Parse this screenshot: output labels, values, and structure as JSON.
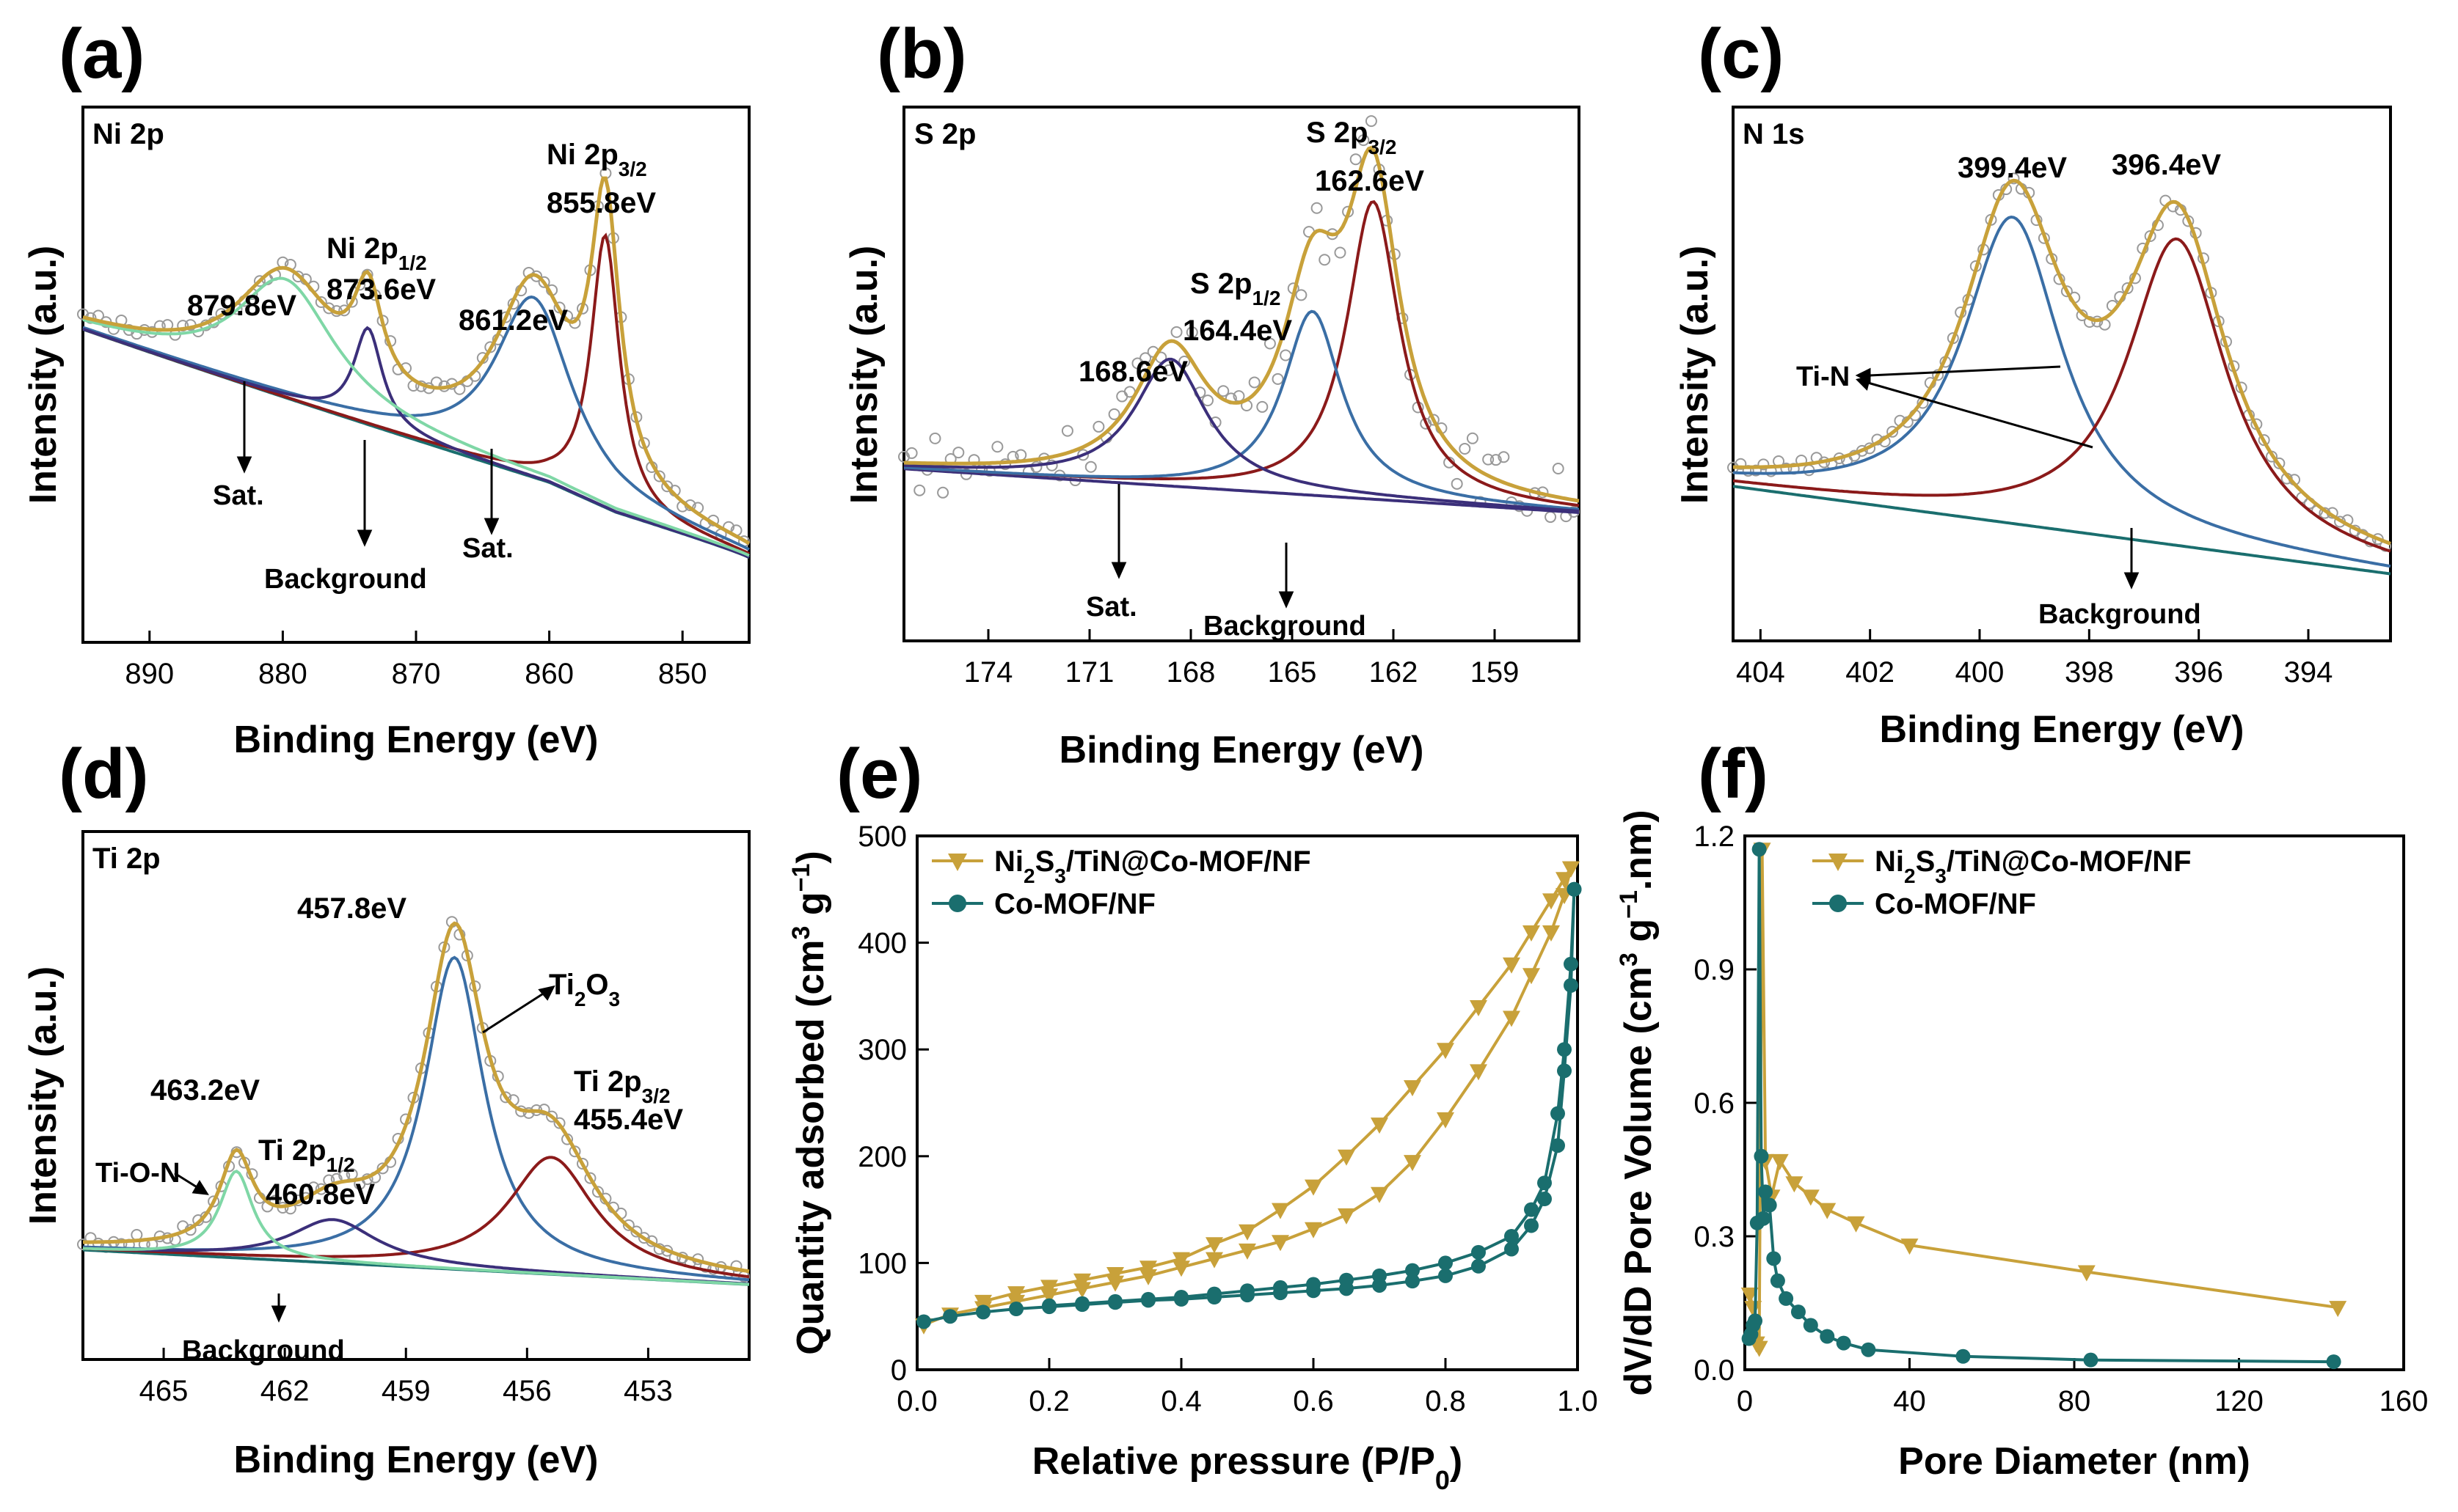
{
  "colors": {
    "gold": "#c8a13a",
    "blue": "#3a6ea5",
    "red": "#8b1a1a",
    "navy": "#3b2f7a",
    "green": "#7fd7a6",
    "teal": "#1a6e6e",
    "point": "#999999"
  },
  "chart_data": [
    {
      "id": "a",
      "type": "line",
      "panel_label": "(a)",
      "corner_label": "Ni 2p",
      "xlabel": "Binding Energy (eV)",
      "ylabel": "Intensity (a.u.)",
      "xlim": [
        895,
        845
      ],
      "xticks": [
        "890",
        "880",
        "870",
        "860",
        "850"
      ],
      "xtick_values": [
        890,
        880,
        870,
        860,
        850
      ],
      "ylim": [
        0,
        1
      ],
      "peaks": [
        {
          "center": 855.8,
          "height": 0.62,
          "width": 1.3,
          "color": "red"
        },
        {
          "center": 861.2,
          "height": 0.41,
          "width": 3.5,
          "color": "blue"
        },
        {
          "center": 873.6,
          "height": 0.22,
          "width": 1.3,
          "color": "navy"
        },
        {
          "center": 879.8,
          "height": 0.27,
          "width": 4.5,
          "color": "green"
        }
      ],
      "background": "ni",
      "annotations": [
        {
          "label": "879.8eV"
        },
        {
          "label": "Ni 2p",
          "sub": "1/2"
        },
        {
          "label": "873.6eV"
        },
        {
          "label": "861.2eV"
        },
        {
          "label": "Ni 2p",
          "sub": "3/2"
        },
        {
          "label": "855.8eV"
        },
        {
          "label": "Sat."
        },
        {
          "label": "Sat."
        },
        {
          "label": "Background"
        }
      ]
    },
    {
      "id": "b",
      "type": "line",
      "panel_label": "(b)",
      "corner_label": "S 2p",
      "xlabel": "Binding Energy (eV)",
      "ylabel": "Intensity (a.u.)",
      "xlim": [
        176.5,
        156.5
      ],
      "xticks": [
        "174",
        "171",
        "168",
        "165",
        "162",
        "159"
      ],
      "xtick_values": [
        174,
        171,
        168,
        165,
        162,
        159
      ],
      "ylim": [
        0,
        1
      ],
      "peaks": [
        {
          "center": 162.6,
          "height": 0.68,
          "width": 0.95,
          "color": "red"
        },
        {
          "center": 164.4,
          "height": 0.42,
          "width": 1.05,
          "color": "blue"
        },
        {
          "center": 168.6,
          "height": 0.29,
          "width": 1.3,
          "color": "navy"
        }
      ],
      "background": "s",
      "annotations": [
        {
          "label": "S 2p",
          "sub": "3/2"
        },
        {
          "label": "162.6eV"
        },
        {
          "label": "S 2p",
          "sub": "1/2"
        },
        {
          "label": "164.4eV"
        },
        {
          "label": "168.6eV"
        },
        {
          "label": "Sat."
        },
        {
          "label": "Background"
        }
      ]
    },
    {
      "id": "c",
      "type": "line",
      "panel_label": "(c)",
      "corner_label": "N 1s",
      "xlabel": "Binding Energy (eV)",
      "ylabel": "Intensity (a.u.)",
      "xlim": [
        404.5,
        392.5
      ],
      "xticks": [
        "404",
        "402",
        "400",
        "398",
        "396",
        "394"
      ],
      "xtick_values": [
        404,
        402,
        400,
        398,
        396,
        394
      ],
      "ylim": [
        0,
        1
      ],
      "peaks": [
        {
          "center": 399.4,
          "height": 0.7,
          "width": 1.1,
          "color": "blue"
        },
        {
          "center": 396.4,
          "height": 0.7,
          "width": 1.1,
          "color": "red"
        }
      ],
      "background": "n",
      "annotations": [
        {
          "label": "399.4eV"
        },
        {
          "label": "396.4eV"
        },
        {
          "label": "Ti-N"
        },
        {
          "label": "Background"
        }
      ]
    },
    {
      "id": "d",
      "type": "line",
      "panel_label": "(d)",
      "corner_label": "Ti 2p",
      "xlabel": "Binding Energy (eV)",
      "ylabel": "Intensity (a.u.)",
      "xlim": [
        467,
        450.5
      ],
      "xticks": [
        "465",
        "462",
        "459",
        "456",
        "453"
      ],
      "xtick_values": [
        465,
        462,
        459,
        456,
        453
      ],
      "ylim": [
        0,
        1
      ],
      "peaks": [
        {
          "center": 457.8,
          "height": 0.72,
          "width": 0.9,
          "color": "blue"
        },
        {
          "center": 455.4,
          "height": 0.27,
          "width": 1.3,
          "color": "red"
        },
        {
          "center": 460.8,
          "height": 0.1,
          "width": 1.3,
          "color": "navy"
        },
        {
          "center": 463.2,
          "height": 0.2,
          "width": 0.5,
          "color": "green"
        }
      ],
      "background": "ti",
      "annotations": [
        {
          "label": "457.8eV"
        },
        {
          "label": "Ti",
          "sub": "2",
          "tail": "O",
          "sub2": "3"
        },
        {
          "label": "Ti 2p",
          "sub": "3/2"
        },
        {
          "label": "455.4eV"
        },
        {
          "label": "463.2eV"
        },
        {
          "label": "Ti 2p",
          "sub": "1/2"
        },
        {
          "label": "460.8eV"
        },
        {
          "label": "Ti-O-N"
        },
        {
          "label": "Background"
        }
      ]
    },
    {
      "id": "e",
      "type": "line",
      "panel_label": "(e)",
      "xlabel": "Relative pressure (P/P0)",
      "ylabel": "Quantity adsorbed (cm3 g-1)",
      "xlim": [
        0,
        1.0
      ],
      "ylim": [
        0,
        500
      ],
      "xticks": [
        "0.0",
        "0.2",
        "0.4",
        "0.6",
        "0.8",
        "1.0"
      ],
      "xtick_values": [
        0,
        0.2,
        0.4,
        0.6,
        0.8,
        1.0
      ],
      "yticks": [
        "0",
        "100",
        "200",
        "300",
        "400",
        "500"
      ],
      "ytick_values": [
        0,
        100,
        200,
        300,
        400,
        500
      ],
      "legend": "top-left",
      "series": [
        {
          "name": "Ni2S3/TiN@Co-MOF/NF",
          "marker": "triangle-down",
          "color": "gold",
          "adsorption": {
            "x": [
              0.01,
              0.05,
              0.1,
              0.15,
              0.2,
              0.25,
              0.3,
              0.35,
              0.4,
              0.45,
              0.5,
              0.55,
              0.6,
              0.65,
              0.7,
              0.75,
              0.8,
              0.85,
              0.9,
              0.93,
              0.96,
              0.98,
              0.99
            ],
            "y": [
              42,
              52,
              58,
              64,
              70,
              76,
              82,
              88,
              96,
              104,
              112,
              120,
              132,
              145,
              165,
              195,
              235,
              280,
              330,
              370,
              410,
              445,
              470
            ]
          },
          "desorption": {
            "x": [
              0.99,
              0.98,
              0.96,
              0.93,
              0.9,
              0.85,
              0.8,
              0.75,
              0.7,
              0.65,
              0.6,
              0.55,
              0.5,
              0.45,
              0.4,
              0.35,
              0.3,
              0.25,
              0.2,
              0.15,
              0.1
            ],
            "y": [
              470,
              460,
              440,
              410,
              380,
              340,
              300,
              265,
              230,
              200,
              172,
              150,
              130,
              118,
              104,
              96,
              90,
              84,
              78,
              72,
              64
            ]
          }
        },
        {
          "name": "Co-MOF/NF",
          "marker": "circle",
          "color": "teal",
          "adsorption": {
            "x": [
              0.01,
              0.05,
              0.1,
              0.15,
              0.2,
              0.25,
              0.3,
              0.35,
              0.4,
              0.45,
              0.5,
              0.55,
              0.6,
              0.65,
              0.7,
              0.75,
              0.8,
              0.85,
              0.9,
              0.93,
              0.95,
              0.97,
              0.98,
              0.99,
              0.995
            ],
            "y": [
              45,
              50,
              54,
              57,
              59,
              61,
              63,
              65,
              66,
              68,
              70,
              72,
              74,
              76,
              79,
              83,
              88,
              97,
              113,
              135,
              160,
              210,
              280,
              360,
              450
            ]
          },
          "desorption": {
            "x": [
              0.995,
              0.99,
              0.98,
              0.97,
              0.95,
              0.93,
              0.9,
              0.85,
              0.8,
              0.75,
              0.7,
              0.65,
              0.6,
              0.55,
              0.5,
              0.45,
              0.4,
              0.35,
              0.3,
              0.25,
              0.2
            ],
            "y": [
              450,
              380,
              300,
              240,
              175,
              150,
              125,
              110,
              100,
              93,
              88,
              84,
              80,
              77,
              74,
              71,
              68,
              66,
              64,
              62,
              60
            ]
          }
        }
      ]
    },
    {
      "id": "f",
      "type": "line",
      "panel_label": "(f)",
      "xlabel": "Pore Diameter (nm)",
      "ylabel": "dV/dD Pore Volume (cm3 g-1.nm)",
      "xlim": [
        0,
        160
      ],
      "ylim": [
        0,
        1.2
      ],
      "xticks": [
        "0",
        "40",
        "80",
        "120",
        "160"
      ],
      "xtick_values": [
        0,
        40,
        80,
        120,
        160
      ],
      "yticks": [
        "0.0",
        "0.3",
        "0.6",
        "0.9",
        "1.2"
      ],
      "ytick_values": [
        0,
        0.3,
        0.6,
        0.9,
        1.2
      ],
      "legend": "top-right",
      "series": [
        {
          "name": "Ni2S3/TiN@Co-MOF/NF",
          "marker": "triangle-down",
          "color": "gold",
          "x": [
            1.2,
            2,
            2.8,
            3.5,
            4.2,
            5,
            6.5,
            8.5,
            12,
            16,
            20,
            27,
            40,
            83,
            144
          ],
          "y": [
            0.17,
            0.14,
            0.06,
            0.05,
            1.17,
            0.47,
            0.39,
            0.47,
            0.42,
            0.39,
            0.36,
            0.33,
            0.28,
            0.22,
            0.14
          ]
        },
        {
          "name": "Co-MOF/NF",
          "marker": "circle",
          "color": "teal",
          "x": [
            1,
            1.5,
            2,
            2.5,
            3,
            3.5,
            4,
            4.5,
            5,
            6,
            7,
            8,
            10,
            13,
            16,
            20,
            24,
            30,
            53,
            84,
            143
          ],
          "y": [
            0.07,
            0.08,
            0.1,
            0.11,
            0.33,
            1.17,
            0.48,
            0.34,
            0.4,
            0.37,
            0.25,
            0.2,
            0.16,
            0.13,
            0.1,
            0.075,
            0.06,
            0.045,
            0.03,
            0.022,
            0.018
          ]
        }
      ]
    }
  ],
  "legend_text": {
    "s1_a": "Ni",
    "s1_b": "2",
    "s1_c": "S",
    "s1_d": "3",
    "s1_e": "/TiN@Co-MOF/NF",
    "s2": "Co-MOF/NF"
  },
  "axis_text": {
    "e_x_main": "Relative pressure (P/P",
    "e_x_sub": "0",
    "e_x_end": ")",
    "e_y_main": "Quantity adsorbed (cm",
    "e_y_sup": "3",
    "e_y_mid": " g",
    "e_y_sup2": "−1",
    "e_y_end": ")",
    "f_y_main": "dV/dD Pore Volume (cm",
    "f_y_sup": "3",
    "f_y_mid": " g",
    "f_y_sup2": "−1",
    "f_y_end": ".nm)"
  }
}
